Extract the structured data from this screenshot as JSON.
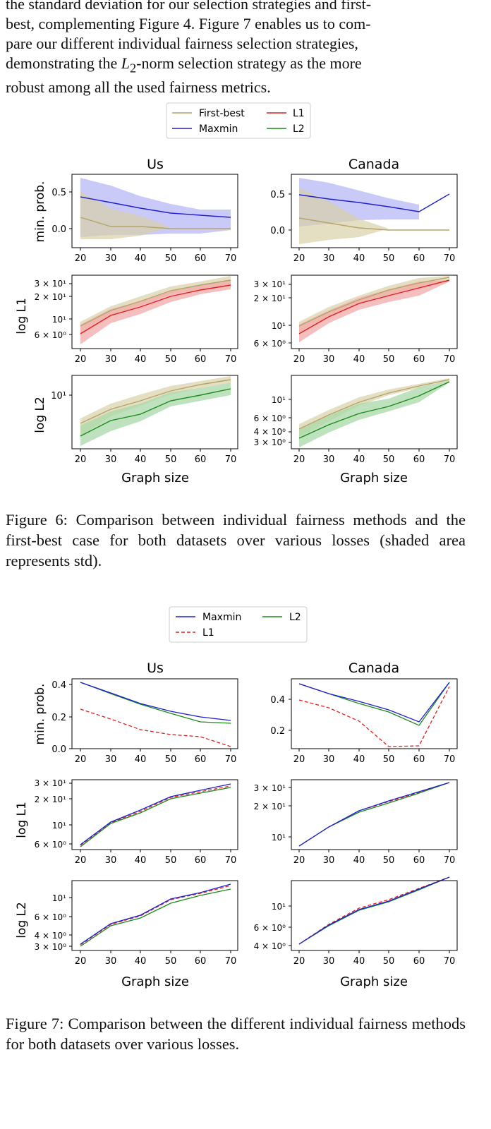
{
  "intro": {
    "line1": "the standard deviation for our selection strategies and first-",
    "line2": "best, complementing Figure 4. Figure 7 enables us to com-",
    "line3": "pare our different individual fairness selection strategies,",
    "line4_pre": "demonstrating the ",
    "line4_math": "L",
    "line4_sub": "2",
    "line4_post": "-norm selection strategy as the more",
    "line5": "robust among all the used fairness metrics."
  },
  "figure6": {
    "caption": "Figure 6: Comparison between individual fairness methods and the first-best case for both datasets over various losses (shaded area represents std).",
    "legend": [
      "First-best",
      "L1",
      "Maxmin",
      "L2"
    ],
    "col_titles": [
      "Us",
      "Canada"
    ],
    "row_labels": [
      "min. prob.",
      "log L1",
      "log L2"
    ],
    "x_label": "Graph size",
    "x_ticks": [
      "20",
      "30",
      "40",
      "50",
      "60",
      "70"
    ],
    "y_ticks": {
      "us_minprob": [
        "0.5",
        "0.0"
      ],
      "ca_minprob": [
        "0.5",
        "0.0"
      ],
      "us_l1": [
        "3 × 10¹",
        "2 × 10¹",
        "10¹",
        "6 × 10⁰"
      ],
      "ca_l1": [
        "3 × 10¹",
        "2 × 10¹",
        "10¹",
        "6 × 10⁰"
      ],
      "us_l2": [
        "10¹"
      ],
      "ca_l2": [
        "10¹",
        "6 × 10⁰",
        "4 × 10⁰",
        "3 × 10⁰"
      ]
    }
  },
  "figure7": {
    "caption": "Figure 7: Comparison between the different individual fairness methods for both datasets over various losses.",
    "legend": [
      "Maxmin",
      "L2",
      "L1"
    ],
    "col_titles": [
      "Us",
      "Canada"
    ],
    "row_labels": [
      "min. prob.",
      "log L1",
      "log L2"
    ],
    "x_label": "Graph size",
    "x_ticks": [
      "20",
      "30",
      "40",
      "50",
      "60",
      "70"
    ],
    "y_ticks": {
      "us_minprob": [
        "0.4",
        "0.2",
        "0.0"
      ],
      "ca_minprob": [
        "0.4",
        "0.2"
      ],
      "us_l1": [
        "3 × 10¹",
        "2 × 10¹",
        "10¹",
        "6 × 10⁰"
      ],
      "ca_l1": [
        "3 × 10¹",
        "2 × 10¹",
        "10¹"
      ],
      "us_l2": [
        "10¹",
        "6 × 10⁰",
        "4 × 10⁰",
        "3 × 10⁰"
      ],
      "ca_l2": [
        "10¹",
        "6 × 10⁰",
        "4 × 10⁰"
      ]
    }
  },
  "colors": {
    "first_best": "#b5a46a",
    "first_best_fill": "#d8d0a8",
    "maxmin": "#1f1fd0",
    "maxmin_fill": "#b8b8f5",
    "l1": "#e02020",
    "l1_fill": "#f3a9a9",
    "l2": "#1a8a1a",
    "l2_fill": "#a8d8a8"
  },
  "chart_data": [
    {
      "type": "line",
      "figure": "Figure 6",
      "panel": "Us / min. prob.",
      "x": [
        20,
        30,
        40,
        50,
        60,
        70
      ],
      "ylabel": "min. prob.",
      "series": [
        {
          "name": "Maxmin",
          "values": [
            0.42,
            0.34,
            0.27,
            0.21,
            0.17,
            0.14
          ],
          "std": [
            0.28,
            0.27,
            0.22,
            0.17,
            0.14,
            0.11
          ]
        },
        {
          "name": "First-best",
          "values": [
            0.15,
            0.02,
            0.02,
            0.0,
            0.0,
            0.0
          ],
          "std": [
            0.33,
            0.17,
            0.12,
            0.0,
            0.0,
            0.0
          ]
        }
      ]
    },
    {
      "type": "line",
      "figure": "Figure 6",
      "panel": "Canada / min. prob.",
      "x": [
        20,
        30,
        40,
        50,
        60,
        70
      ],
      "ylabel": "min. prob.",
      "series": [
        {
          "name": "Maxmin",
          "values": [
            0.49,
            0.43,
            0.38,
            0.32,
            0.25,
            0.5
          ],
          "std": [
            0.28,
            0.26,
            0.2,
            0.14,
            0.1,
            0.0
          ]
        },
        {
          "name": "First-best",
          "values": [
            0.16,
            0.09,
            0.02,
            0.0,
            0.0,
            0.0
          ],
          "std": [
            0.38,
            0.28,
            0.12,
            0.0,
            0.0,
            0.0
          ]
        }
      ]
    },
    {
      "type": "line",
      "figure": "Figure 6",
      "panel": "Us / log L1",
      "log_y": true,
      "x": [
        20,
        30,
        40,
        50,
        60,
        70
      ],
      "ylabel": "log L1",
      "series": [
        {
          "name": "First-best",
          "values": [
            8.0,
            12.5,
            16.5,
            22.0,
            26.5,
            30.5
          ]
        },
        {
          "name": "L1",
          "values": [
            6.5,
            10.5,
            13.5,
            19.0,
            23.0,
            27.0
          ]
        }
      ]
    },
    {
      "type": "line",
      "figure": "Figure 6",
      "panel": "Canada / log L1",
      "log_y": true,
      "x": [
        20,
        30,
        40,
        50,
        60,
        70
      ],
      "ylabel": "log L1",
      "series": [
        {
          "name": "First-best",
          "values": [
            8.5,
            12.5,
            17.0,
            22.0,
            27.0,
            32.0
          ]
        },
        {
          "name": "L1",
          "values": [
            7.0,
            11.0,
            15.5,
            19.5,
            24.0,
            31.0
          ]
        }
      ]
    },
    {
      "type": "line",
      "figure": "Figure 6",
      "panel": "Us / log L2",
      "log_y": true,
      "x": [
        20,
        30,
        40,
        50,
        60,
        70
      ],
      "ylabel": "log L2",
      "series": [
        {
          "name": "First-best",
          "values": [
            5.0,
            7.0,
            8.5,
            10.5,
            12.0,
            13.5
          ]
        },
        {
          "name": "L2",
          "values": [
            4.0,
            5.7,
            6.8,
            8.8,
            10.0,
            11.5
          ]
        }
      ]
    },
    {
      "type": "line",
      "figure": "Figure 6",
      "panel": "Canada / log L2",
      "log_y": true,
      "x": [
        20,
        30,
        40,
        50,
        60,
        70
      ],
      "ylabel": "log L2",
      "series": [
        {
          "name": "First-best",
          "values": [
            4.5,
            6.5,
            9.0,
            11.5,
            14.0,
            17.0
          ]
        },
        {
          "name": "L2",
          "values": [
            3.8,
            5.3,
            7.3,
            8.8,
            11.5,
            16.5
          ]
        }
      ]
    },
    {
      "type": "line",
      "figure": "Figure 7",
      "panel": "Us / min. prob.",
      "x": [
        20,
        30,
        40,
        50,
        60,
        70
      ],
      "ylabel": "min. prob.",
      "series": [
        {
          "name": "Maxmin",
          "values": [
            0.41,
            0.34,
            0.27,
            0.2,
            0.17,
            0.14
          ]
        },
        {
          "name": "L2",
          "values": [
            0.41,
            0.33,
            0.25,
            0.19,
            0.13,
            0.12
          ]
        },
        {
          "name": "L1",
          "values": [
            0.25,
            0.17,
            0.095,
            0.06,
            0.045,
            0.013
          ]
        }
      ]
    },
    {
      "type": "line",
      "figure": "Figure 7",
      "panel": "Canada / min. prob.",
      "x": [
        20,
        30,
        40,
        50,
        60,
        70
      ],
      "ylabel": "min. prob.",
      "series": [
        {
          "name": "Maxmin",
          "values": [
            0.48,
            0.42,
            0.37,
            0.32,
            0.25,
            0.5
          ]
        },
        {
          "name": "L2",
          "values": [
            0.48,
            0.42,
            0.36,
            0.31,
            0.23,
            0.5
          ]
        },
        {
          "name": "L1",
          "values": [
            0.33,
            0.28,
            0.2,
            0.04,
            0.045,
            0.46
          ]
        }
      ]
    },
    {
      "type": "line",
      "figure": "Figure 7",
      "panel": "Us / log L1",
      "log_y": true,
      "x": [
        20,
        30,
        40,
        50,
        60,
        70
      ],
      "ylabel": "log L1",
      "series": [
        {
          "name": "Maxmin",
          "values": [
            6.5,
            11.2,
            14.5,
            20.5,
            24.0,
            28.5
          ]
        },
        {
          "name": "L2",
          "values": [
            6.3,
            11.0,
            14.0,
            19.5,
            23.0,
            27.0
          ]
        },
        {
          "name": "L1",
          "values": [
            6.4,
            11.1,
            14.2,
            20.0,
            23.5,
            27.5
          ]
        }
      ]
    },
    {
      "type": "line",
      "figure": "Figure 7",
      "panel": "Canada / log L1",
      "log_y": true,
      "x": [
        20,
        30,
        40,
        50,
        60,
        70
      ],
      "ylabel": "log L1",
      "series": [
        {
          "name": "Maxmin",
          "values": [
            7.0,
            11.5,
            16.5,
            20.0,
            24.5,
            31.0
          ]
        },
        {
          "name": "L2",
          "values": [
            7.0,
            11.5,
            16.0,
            19.5,
            24.0,
            31.0
          ]
        },
        {
          "name": "L1",
          "values": [
            7.0,
            11.5,
            16.3,
            19.8,
            24.3,
            31.0
          ]
        }
      ]
    },
    {
      "type": "line",
      "figure": "Figure 7",
      "panel": "Us / log L2",
      "log_y": true,
      "x": [
        20,
        30,
        40,
        50,
        60,
        70
      ],
      "ylabel": "log L2",
      "series": [
        {
          "name": "Maxmin",
          "values": [
            3.0,
            5.5,
            6.9,
            9.6,
            11.0,
            13.0
          ]
        },
        {
          "name": "L2",
          "values": [
            2.9,
            5.3,
            6.6,
            9.2,
            10.6,
            12.2
          ]
        },
        {
          "name": "L1",
          "values": [
            2.95,
            5.4,
            6.8,
            9.5,
            10.9,
            12.6
          ]
        }
      ]
    },
    {
      "type": "line",
      "figure": "Figure 7",
      "panel": "Canada / log L2",
      "log_y": true,
      "x": [
        20,
        30,
        40,
        50,
        60,
        70
      ],
      "ylabel": "log L2",
      "series": [
        {
          "name": "Maxmin",
          "values": [
            3.8,
            5.5,
            7.3,
            8.5,
            10.8,
            15.0
          ]
        },
        {
          "name": "L2",
          "values": [
            3.8,
            5.5,
            7.2,
            8.4,
            10.7,
            15.0
          ]
        },
        {
          "name": "L1",
          "values": [
            3.8,
            5.6,
            7.4,
            8.7,
            11.0,
            15.0
          ]
        }
      ]
    }
  ]
}
